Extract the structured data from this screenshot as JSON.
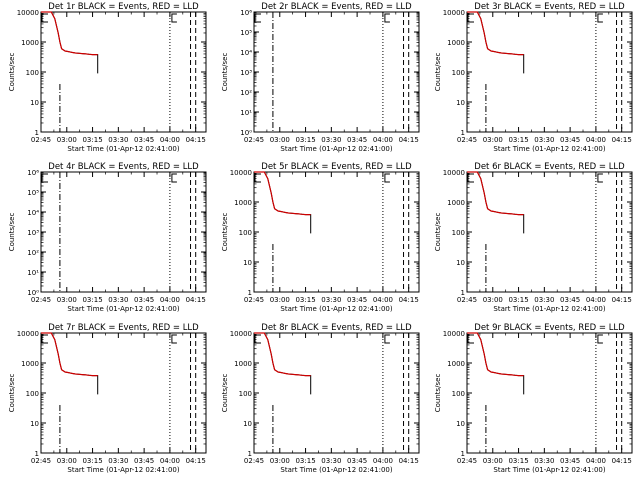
{
  "figure": {
    "common": {
      "xlabel": "Start Time (01-Apr-12 02:41:00)",
      "ylabel": "Counts/sec",
      "x_ticks": [
        "02:45",
        "03:00",
        "03:15",
        "03:30",
        "03:45",
        "04:00",
        "04:15"
      ],
      "x_range_minutes_after_0245": [
        0,
        96
      ],
      "line_colors": {
        "events": "#000000",
        "lld": "#cc0000"
      }
    }
  },
  "chart_data": [
    {
      "type": "line",
      "title": "Det 1r BLACK = Events, RED = LLD",
      "scale": "log",
      "ylim": [
        1,
        10000
      ],
      "y_ticks": [
        "1",
        "10",
        "100",
        "1000",
        "10000"
      ],
      "series": [
        {
          "role": "events",
          "x": [
            0,
            2,
            4,
            6,
            8,
            10,
            11,
            12,
            14,
            16,
            18,
            20,
            22,
            24,
            26,
            28,
            30,
            32,
            33,
            33
          ],
          "y": [
            10000,
            10000,
            10000,
            10000,
            6000,
            2000,
            1000,
            600,
            500,
            480,
            450,
            430,
            420,
            410,
            400,
            390,
            380,
            380,
            380,
            90
          ]
        },
        {
          "role": "lld",
          "x": [
            0,
            2,
            4,
            6,
            8,
            10,
            11,
            12,
            14,
            16,
            18,
            20,
            22,
            24,
            26,
            28,
            30,
            32,
            33
          ],
          "y": [
            10000,
            10000,
            10000,
            10000,
            6000,
            2000,
            1000,
            600,
            500,
            480,
            450,
            430,
            420,
            410,
            400,
            390,
            380,
            380,
            380
          ]
        }
      ],
      "vlines": [
        {
          "x": 11,
          "style": "dashdot",
          "from": 40
        },
        {
          "x": 75,
          "style": "dotted"
        },
        {
          "x": 87,
          "style": "dashed"
        },
        {
          "x": 90,
          "style": "dashed"
        }
      ],
      "markers": [
        "bracket-start",
        "bracket-end"
      ]
    },
    {
      "type": "line",
      "title": "Det 2r BLACK = Events, RED = LLD",
      "scale": "log",
      "ylim": [
        1,
        1000000
      ],
      "y_ticks": [
        "10⁰",
        "10¹",
        "10²",
        "10³",
        "10⁴",
        "10⁵",
        "10⁶"
      ],
      "series": [],
      "vlines": [
        {
          "x": 11,
          "style": "dashdot"
        },
        {
          "x": 75,
          "style": "dotted"
        },
        {
          "x": 87,
          "style": "dashed"
        },
        {
          "x": 90,
          "style": "dashed"
        }
      ],
      "markers": [
        "bracket-start",
        "bracket-end"
      ]
    },
    {
      "type": "line",
      "title": "Det 3r BLACK = Events, RED = LLD",
      "scale": "log",
      "ylim": [
        1,
        10000
      ],
      "y_ticks": [
        "1",
        "10",
        "100",
        "1000",
        "10000"
      ],
      "series": [
        {
          "role": "events",
          "x": [
            0,
            2,
            4,
            6,
            8,
            10,
            11,
            12,
            14,
            16,
            18,
            20,
            22,
            24,
            26,
            28,
            30,
            32,
            33,
            33
          ],
          "y": [
            10000,
            10000,
            10000,
            10000,
            6000,
            2000,
            1000,
            600,
            500,
            480,
            450,
            430,
            420,
            410,
            400,
            390,
            380,
            380,
            380,
            90
          ]
        },
        {
          "role": "lld",
          "x": [
            0,
            2,
            4,
            6,
            8,
            10,
            11,
            12,
            14,
            16,
            18,
            20,
            22,
            24,
            26,
            28,
            30,
            32,
            33
          ],
          "y": [
            10000,
            10000,
            10000,
            10000,
            6000,
            2000,
            1000,
            600,
            500,
            480,
            450,
            430,
            420,
            410,
            400,
            390,
            380,
            380,
            380
          ]
        }
      ],
      "vlines": [
        {
          "x": 11,
          "style": "dashdot",
          "from": 40
        },
        {
          "x": 75,
          "style": "dotted"
        },
        {
          "x": 87,
          "style": "dashed"
        },
        {
          "x": 90,
          "style": "dashed"
        }
      ],
      "markers": [
        "bracket-start",
        "bracket-end"
      ]
    },
    {
      "type": "line",
      "title": "Det 4r BLACK = Events, RED = LLD",
      "scale": "log",
      "ylim": [
        1,
        1000000
      ],
      "y_ticks": [
        "10⁰",
        "10¹",
        "10²",
        "10³",
        "10⁴",
        "10⁵",
        "10⁶"
      ],
      "series": [],
      "vlines": [
        {
          "x": 11,
          "style": "dashdot"
        },
        {
          "x": 75,
          "style": "dotted"
        },
        {
          "x": 87,
          "style": "dashed"
        },
        {
          "x": 90,
          "style": "dashed"
        }
      ],
      "markers": [
        "bracket-start",
        "bracket-end"
      ]
    },
    {
      "type": "line",
      "title": "Det 5r BLACK = Events, RED = LLD",
      "scale": "log",
      "ylim": [
        1,
        10000
      ],
      "y_ticks": [
        "1",
        "10",
        "100",
        "1000",
        "10000"
      ],
      "series": [
        {
          "role": "events",
          "x": [
            0,
            2,
            4,
            6,
            8,
            10,
            11,
            12,
            14,
            16,
            18,
            20,
            22,
            24,
            26,
            28,
            30,
            32,
            33,
            33
          ],
          "y": [
            10000,
            10000,
            10000,
            10000,
            6000,
            2000,
            1000,
            600,
            500,
            480,
            450,
            430,
            420,
            410,
            400,
            390,
            380,
            380,
            380,
            90
          ]
        },
        {
          "role": "lld",
          "x": [
            0,
            2,
            4,
            6,
            8,
            10,
            11,
            12,
            14,
            16,
            18,
            20,
            22,
            24,
            26,
            28,
            30,
            32,
            33
          ],
          "y": [
            10000,
            10000,
            10000,
            10000,
            6000,
            2000,
            1000,
            600,
            500,
            480,
            450,
            430,
            420,
            410,
            400,
            390,
            380,
            380,
            380
          ]
        }
      ],
      "vlines": [
        {
          "x": 11,
          "style": "dashdot",
          "from": 40
        },
        {
          "x": 75,
          "style": "dotted"
        },
        {
          "x": 87,
          "style": "dashed"
        },
        {
          "x": 90,
          "style": "dashed"
        }
      ],
      "markers": [
        "bracket-start",
        "bracket-end"
      ]
    },
    {
      "type": "line",
      "title": "Det 6r BLACK = Events, RED = LLD",
      "scale": "log",
      "ylim": [
        1,
        10000
      ],
      "y_ticks": [
        "1",
        "10",
        "100",
        "1000",
        "10000"
      ],
      "series": [
        {
          "role": "events",
          "x": [
            0,
            2,
            4,
            6,
            8,
            10,
            11,
            12,
            14,
            16,
            18,
            20,
            22,
            24,
            26,
            28,
            30,
            32,
            33,
            33
          ],
          "y": [
            10000,
            10000,
            10000,
            10000,
            6000,
            2000,
            1000,
            600,
            500,
            480,
            450,
            430,
            420,
            410,
            400,
            390,
            380,
            380,
            380,
            90
          ]
        },
        {
          "role": "lld",
          "x": [
            0,
            2,
            4,
            6,
            8,
            10,
            11,
            12,
            14,
            16,
            18,
            20,
            22,
            24,
            26,
            28,
            30,
            32,
            33
          ],
          "y": [
            10000,
            10000,
            10000,
            10000,
            6000,
            2000,
            1000,
            600,
            500,
            480,
            450,
            430,
            420,
            410,
            400,
            390,
            380,
            380,
            380
          ]
        }
      ],
      "vlines": [
        {
          "x": 11,
          "style": "dashdot",
          "from": 40
        },
        {
          "x": 75,
          "style": "dotted"
        },
        {
          "x": 87,
          "style": "dashed"
        },
        {
          "x": 90,
          "style": "dashed"
        }
      ],
      "markers": [
        "bracket-start",
        "bracket-end"
      ]
    },
    {
      "type": "line",
      "title": "Det 7r BLACK = Events, RED = LLD",
      "scale": "log",
      "ylim": [
        1,
        10000
      ],
      "y_ticks": [
        "1",
        "10",
        "100",
        "1000",
        "10000"
      ],
      "series": [
        {
          "role": "events",
          "x": [
            0,
            2,
            4,
            6,
            8,
            10,
            11,
            12,
            14,
            16,
            18,
            20,
            22,
            24,
            26,
            28,
            30,
            32,
            33,
            33
          ],
          "y": [
            10000,
            10000,
            10000,
            10000,
            6000,
            2000,
            1000,
            600,
            500,
            480,
            450,
            430,
            420,
            410,
            400,
            390,
            380,
            380,
            380,
            90
          ]
        },
        {
          "role": "lld",
          "x": [
            0,
            2,
            4,
            6,
            8,
            10,
            11,
            12,
            14,
            16,
            18,
            20,
            22,
            24,
            26,
            28,
            30,
            32,
            33
          ],
          "y": [
            10000,
            10000,
            10000,
            10000,
            6000,
            2000,
            1000,
            600,
            500,
            480,
            450,
            430,
            420,
            410,
            400,
            390,
            380,
            380,
            380
          ]
        }
      ],
      "vlines": [
        {
          "x": 11,
          "style": "dashdot",
          "from": 40
        },
        {
          "x": 75,
          "style": "dotted"
        },
        {
          "x": 87,
          "style": "dashed"
        },
        {
          "x": 90,
          "style": "dashed"
        }
      ],
      "markers": [
        "bracket-start",
        "bracket-end"
      ]
    },
    {
      "type": "line",
      "title": "Det 8r BLACK = Events, RED = LLD",
      "scale": "log",
      "ylim": [
        1,
        10000
      ],
      "y_ticks": [
        "1",
        "10",
        "100",
        "1000",
        "10000"
      ],
      "series": [
        {
          "role": "events",
          "x": [
            0,
            2,
            4,
            6,
            8,
            10,
            11,
            12,
            14,
            16,
            18,
            20,
            22,
            24,
            26,
            28,
            30,
            32,
            33,
            33
          ],
          "y": [
            10000,
            10000,
            10000,
            10000,
            6000,
            2000,
            1000,
            600,
            500,
            480,
            450,
            430,
            420,
            410,
            400,
            390,
            380,
            380,
            380,
            90
          ]
        },
        {
          "role": "lld",
          "x": [
            0,
            2,
            4,
            6,
            8,
            10,
            11,
            12,
            14,
            16,
            18,
            20,
            22,
            24,
            26,
            28,
            30,
            32,
            33
          ],
          "y": [
            10000,
            10000,
            10000,
            10000,
            6000,
            2000,
            1000,
            600,
            500,
            480,
            450,
            430,
            420,
            410,
            400,
            390,
            380,
            380,
            380
          ]
        }
      ],
      "vlines": [
        {
          "x": 11,
          "style": "dashdot",
          "from": 40
        },
        {
          "x": 75,
          "style": "dotted"
        },
        {
          "x": 87,
          "style": "dashed"
        },
        {
          "x": 90,
          "style": "dashed"
        }
      ],
      "markers": [
        "bracket-start",
        "bracket-end"
      ]
    },
    {
      "type": "line",
      "title": "Det 9r BLACK = Events, RED = LLD",
      "scale": "log",
      "ylim": [
        1,
        10000
      ],
      "y_ticks": [
        "1",
        "10",
        "100",
        "1000",
        "10000"
      ],
      "series": [
        {
          "role": "events",
          "x": [
            0,
            2,
            4,
            6,
            8,
            10,
            11,
            12,
            14,
            16,
            18,
            20,
            22,
            24,
            26,
            28,
            30,
            32,
            33,
            33
          ],
          "y": [
            10000,
            10000,
            10000,
            10000,
            6000,
            2000,
            1000,
            600,
            500,
            480,
            450,
            430,
            420,
            410,
            400,
            390,
            380,
            380,
            380,
            90
          ]
        },
        {
          "role": "lld",
          "x": [
            0,
            2,
            4,
            6,
            8,
            10,
            11,
            12,
            14,
            16,
            18,
            20,
            22,
            24,
            26,
            28,
            30,
            32,
            33
          ],
          "y": [
            10000,
            10000,
            10000,
            10000,
            6000,
            2000,
            1000,
            600,
            500,
            480,
            450,
            430,
            420,
            410,
            400,
            390,
            380,
            380,
            380
          ]
        }
      ],
      "vlines": [
        {
          "x": 11,
          "style": "dashdot",
          "from": 40
        },
        {
          "x": 75,
          "style": "dotted"
        },
        {
          "x": 87,
          "style": "dashed"
        },
        {
          "x": 90,
          "style": "dashed"
        }
      ],
      "markers": [
        "bracket-start",
        "bracket-end"
      ]
    }
  ]
}
